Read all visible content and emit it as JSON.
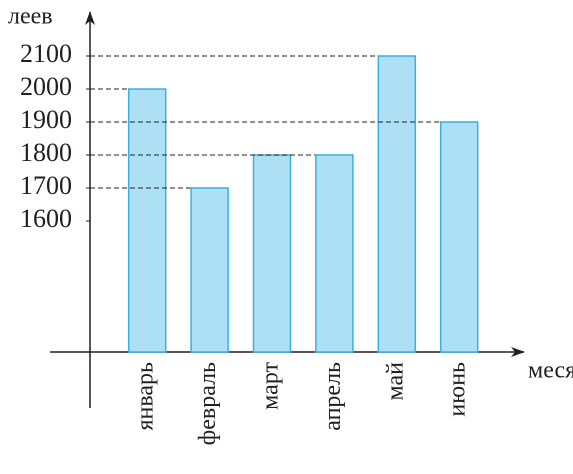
{
  "chart_data": {
    "type": "bar",
    "y_label": "леев",
    "x_label": "месяц",
    "categories": [
      "январь",
      "февраль",
      "март",
      "апрель",
      "май",
      "июнь"
    ],
    "values": [
      2000,
      1700,
      1800,
      1800,
      2100,
      1900
    ],
    "color": "#aee0f5",
    "edge_color": "#3ab0e0",
    "ylim": [
      1200,
      2200
    ],
    "yticks": [
      1600,
      1700,
      1800,
      1900,
      2000,
      2100
    ],
    "reference_lines": true
  }
}
